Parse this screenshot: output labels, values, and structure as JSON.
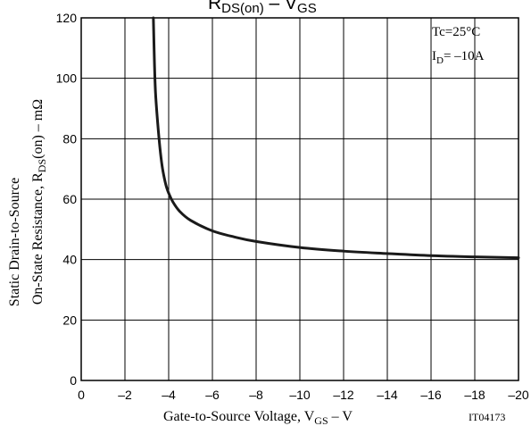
{
  "chart_data": {
    "type": "line",
    "title": {
      "main": "R",
      "sub1": "DS(on)",
      "mid": " – V",
      "sub2": "GS"
    },
    "xlabel": {
      "main": "Gate-to-Source Voltage, V",
      "sub": "GS",
      "tail": " – V"
    },
    "ylabel": {
      "line1": "Static Drain-to-Source",
      "line2_main": "On-State Resistance, R",
      "line2_sub": "DS",
      "line2_tail": "(on) – mΩ"
    },
    "annotations": {
      "tc": "Tc=25°C",
      "id_main": "I",
      "id_sub": "D",
      "id_tail": "= –10A",
      "code": "IT04173"
    },
    "xlim": [
      0,
      -20
    ],
    "ylim": [
      0,
      120
    ],
    "x_ticks": [
      0,
      -2,
      -4,
      -6,
      -8,
      -10,
      -12,
      -14,
      -16,
      -18,
      -20
    ],
    "x_tick_labels": [
      "0",
      "–2",
      "–4",
      "–6",
      "–8",
      "–10",
      "–12",
      "–14",
      "–16",
      "–18",
      "–20"
    ],
    "y_ticks": [
      0,
      20,
      40,
      60,
      80,
      100,
      120
    ],
    "y_tick_labels": [
      "0",
      "20",
      "40",
      "60",
      "80",
      "100",
      "120"
    ],
    "grid": true,
    "series": [
      {
        "x": [
          -3.3,
          -3.35,
          -3.4,
          -3.5,
          -3.6,
          -3.7,
          -3.8,
          -3.9,
          -4.0,
          -4.2,
          -4.5,
          -5,
          -6,
          -7,
          -8,
          -10,
          -12,
          -14,
          -16,
          -18,
          -20
        ],
        "y": [
          120,
          105,
          95,
          85,
          77,
          71,
          67,
          64,
          62,
          59,
          56,
          53,
          49.5,
          47.5,
          46,
          44,
          42.8,
          42,
          41.3,
          40.9,
          40.6
        ]
      }
    ]
  }
}
